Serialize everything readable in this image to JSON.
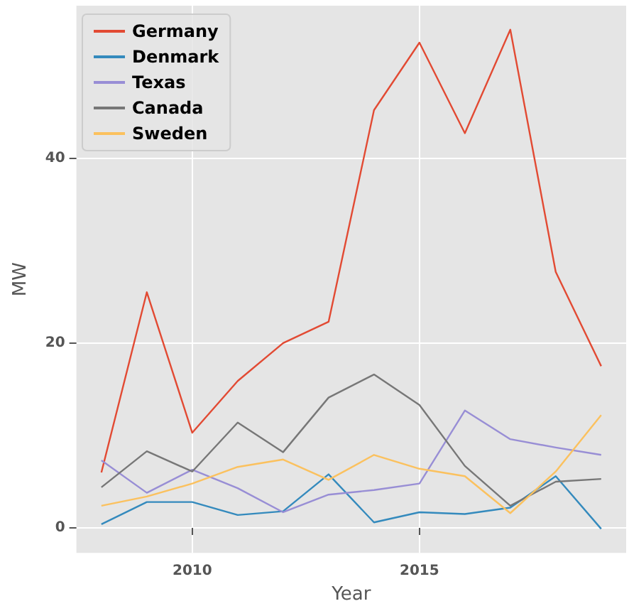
{
  "chart_data": {
    "type": "line",
    "xlabel": "Year",
    "ylabel": "MW",
    "x": [
      2008,
      2009,
      2010,
      2011,
      2012,
      2013,
      2014,
      2015,
      2016,
      2017,
      2018,
      2019
    ],
    "series": [
      {
        "name": "Germany",
        "color": "#e24a33",
        "values": [
          6.0,
          25.5,
          10.3,
          15.9,
          20.0,
          22.3,
          45.2,
          52.5,
          42.7,
          53.9,
          27.7,
          17.5
        ]
      },
      {
        "name": "Denmark",
        "color": "#348abd",
        "values": [
          0.4,
          2.8,
          2.8,
          1.4,
          1.8,
          5.8,
          0.6,
          1.7,
          1.5,
          2.2,
          5.6,
          -0.1
        ]
      },
      {
        "name": "Texas",
        "color": "#988ed5",
        "values": [
          7.3,
          3.8,
          6.3,
          4.3,
          1.7,
          3.6,
          4.1,
          4.8,
          12.7,
          9.6,
          8.7,
          7.9
        ]
      },
      {
        "name": "Canada",
        "color": "#777777",
        "values": [
          4.4,
          8.3,
          6.1,
          11.4,
          8.2,
          14.1,
          16.6,
          13.3,
          6.7,
          2.4,
          5.0,
          5.3
        ]
      },
      {
        "name": "Sweden",
        "color": "#fbc15e",
        "values": [
          2.4,
          3.4,
          4.8,
          6.6,
          7.4,
          5.2,
          7.9,
          6.4,
          5.6,
          1.6,
          6.1,
          12.2
        ]
      }
    ],
    "xlim": [
      2007.45,
      2019.55
    ],
    "xticks": [
      2010,
      2015
    ],
    "ylim": [
      -2.7,
      56.5
    ],
    "yticks": [
      0,
      20,
      40
    ],
    "grid": true,
    "legend": "top left",
    "marker": "none",
    "line_style": "solid"
  }
}
